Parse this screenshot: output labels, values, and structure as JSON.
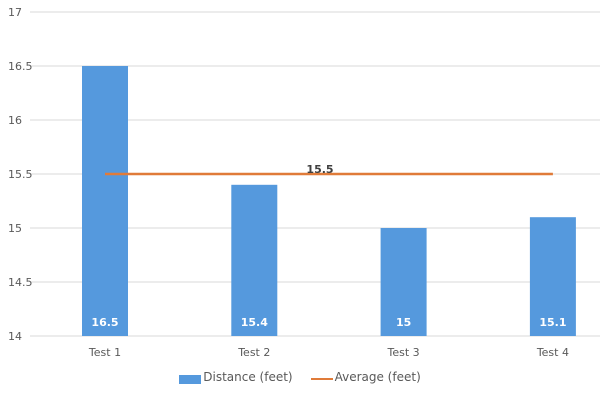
{
  "chart_data": {
    "type": "bar",
    "title": "",
    "xlabel": "",
    "ylabel": "",
    "ylim": [
      14,
      17
    ],
    "yticks": [
      14,
      14.5,
      15,
      15.5,
      16,
      16.5,
      17
    ],
    "ytick_labels": [
      "14",
      "14.5",
      "15",
      "15.5",
      "16",
      "16.5",
      "17"
    ],
    "grid": true,
    "legend_position": "bottom",
    "categories": [
      "Test 1",
      "Test 2",
      "Test 3",
      "Test 4"
    ],
    "series": [
      {
        "name": "Distance (feet)",
        "type": "bar",
        "color": "#5599DD",
        "values": [
          16.5,
          15.4,
          15,
          15.1
        ],
        "data_labels": [
          "16.5",
          "15.4",
          "15",
          "15.1"
        ]
      },
      {
        "name": "Average (feet)",
        "type": "line",
        "color": "#E07B39",
        "values": [
          15.5,
          15.5,
          15.5,
          15.5
        ],
        "data_label": "15.5"
      }
    ]
  },
  "legend": {
    "items": [
      {
        "label": "Distance (feet)",
        "color": "#5599DD"
      },
      {
        "label": "Average (feet)",
        "color": "#E07B39"
      }
    ]
  }
}
